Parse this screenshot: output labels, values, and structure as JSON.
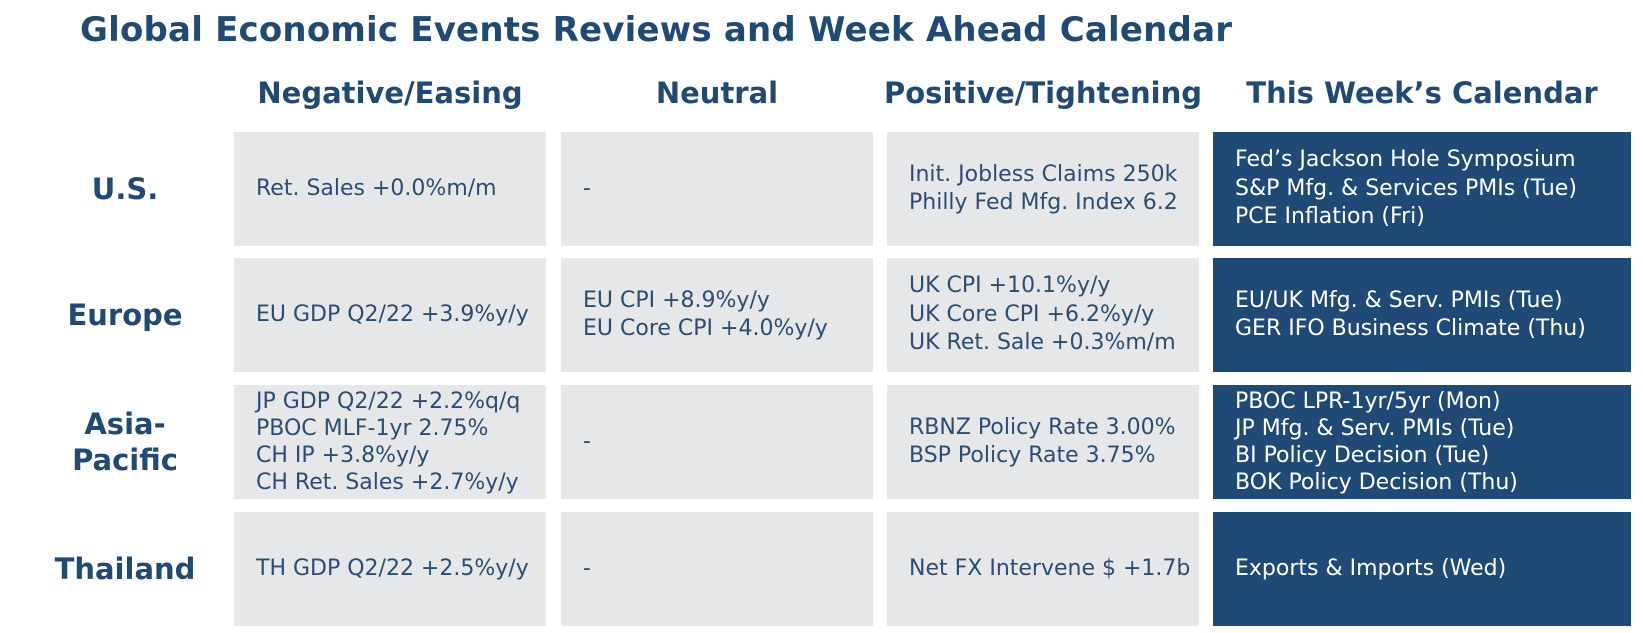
{
  "title": "Global Economic Events Reviews and Week Ahead Calendar",
  "columns": [
    "Negative/Easing",
    "Neutral",
    "Positive/Tightening",
    "This Week’s Calendar"
  ],
  "rows": [
    {
      "region": "U.S.",
      "negative": [
        "Ret. Sales +0.0%m/m"
      ],
      "neutral": [
        "-"
      ],
      "positive": [
        "Init. Jobless Claims 250k",
        "Philly Fed Mfg. Index 6.2"
      ],
      "calendar": [
        "Fed’s Jackson Hole Symposium",
        "S&P Mfg. & Services PMIs (Tue)",
        "PCE Inflation (Fri)"
      ]
    },
    {
      "region": "Europe",
      "negative": [
        "EU GDP Q2/22 +3.9%y/y"
      ],
      "neutral": [
        "EU CPI +8.9%y/y",
        "EU Core CPI +4.0%y/y"
      ],
      "positive": [
        "UK CPI +10.1%y/y",
        "UK Core CPI +6.2%y/y",
        "UK Ret. Sale +0.3%m/m"
      ],
      "calendar": [
        "EU/UK Mfg. & Serv. PMIs (Tue)",
        "GER IFO Business Climate (Thu)"
      ]
    },
    {
      "region": "Asia-Pacific",
      "region_lines": [
        "Asia-",
        "Pacific"
      ],
      "negative": [
        "JP GDP Q2/22 +2.2%q/q",
        "PBOC MLF-1yr 2.75%",
        "CH IP +3.8%y/y",
        "CH Ret. Sales +2.7%y/y"
      ],
      "neutral": [
        "-"
      ],
      "positive": [
        "RBNZ Policy Rate 3.00%",
        "BSP Policy Rate 3.75%"
      ],
      "calendar": [
        "PBOC LPR-1yr/5yr (Mon)",
        "JP Mfg. & Serv. PMIs (Tue)",
        "BI Policy Decision (Tue)",
        "BOK Policy Decision (Thu)"
      ]
    },
    {
      "region": "Thailand",
      "negative": [
        "TH GDP Q2/22 +2.5%y/y"
      ],
      "neutral": [
        "-"
      ],
      "positive": [
        "Net FX Intervene $ +1.7b"
      ],
      "calendar": [
        "Exports & Imports (Wed)"
      ]
    }
  ],
  "colors": {
    "navy": "#1f4a75",
    "cell_gray": "#e6e7e8",
    "text_blue": "#2a4d75",
    "calendar_text": "#ffffff"
  }
}
